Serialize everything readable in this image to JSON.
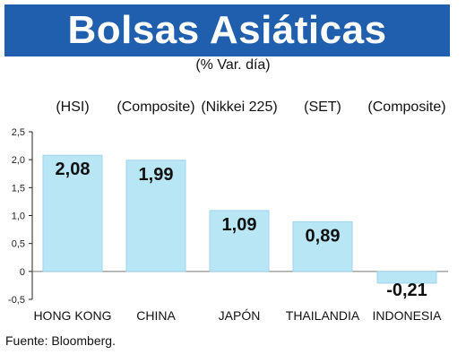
{
  "header": {
    "title": "Bolsas Asiáticas",
    "subtitle": "(% Var. día)"
  },
  "source": "Fuente: Bloomberg.",
  "colors": {
    "title_bg": "#1f5fae",
    "bar_fill": "#b8e6f5",
    "bar_stroke": "#9fd4ea"
  },
  "chart_data": {
    "type": "bar",
    "title": "Bolsas Asiáticas",
    "subtitle": "(% Var. día)",
    "categories": [
      "HONG KONG",
      "CHINA",
      "JAPÓN",
      "THAILANDIA",
      "INDONESIA"
    ],
    "index_names": [
      "(HSI)",
      "(Composite)",
      "(Nikkei 225)",
      "(SET)",
      "(Composite)"
    ],
    "values": [
      2.08,
      1.99,
      1.09,
      0.89,
      -0.21
    ],
    "value_labels": [
      "2,08",
      "1,99",
      "1,09",
      "0,89",
      "-0,21"
    ],
    "y_ticks": [
      2.5,
      2.0,
      1.5,
      1.0,
      0.5,
      0,
      -0.5
    ],
    "y_tick_labels": [
      "2,5",
      "2,0",
      "1,5",
      "1,0",
      "0,5",
      "0",
      "-0,5"
    ],
    "ylim": [
      -0.5,
      2.5
    ],
    "grid": false,
    "xlabel": "",
    "ylabel": ""
  }
}
